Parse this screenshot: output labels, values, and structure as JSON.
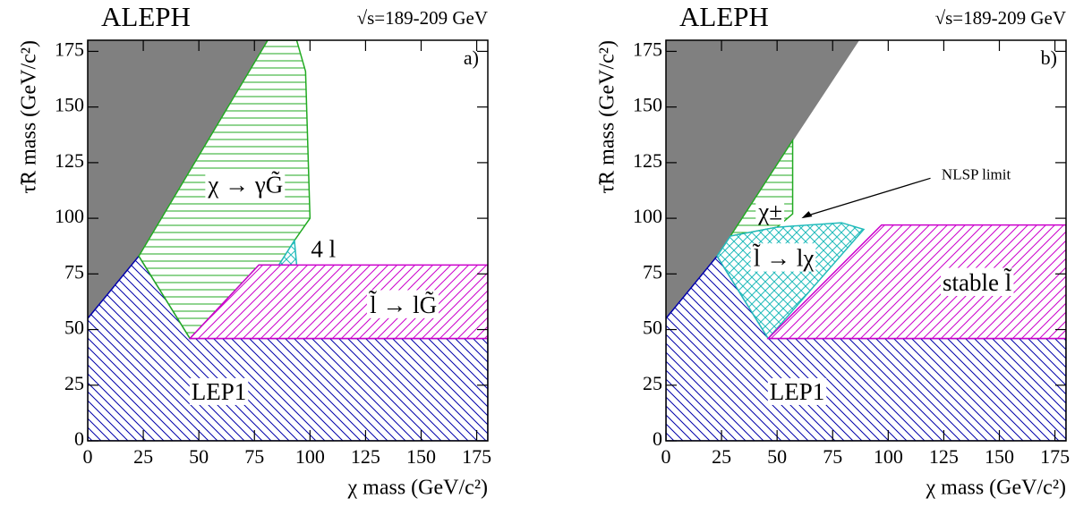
{
  "chart_data": [
    {
      "type": "area",
      "title": "ALEPH",
      "subtitle": "√s=189-209 GeV",
      "panel_label": "a)",
      "x_label": "χ mass (GeV/c²)",
      "y_label": "τ̃R mass (GeV/c²)",
      "xlim": [
        0,
        180
      ],
      "ylim": [
        0,
        180
      ],
      "xticks": [
        0,
        25,
        50,
        75,
        100,
        125,
        150,
        175
      ],
      "yticks": [
        0,
        25,
        50,
        75,
        100,
        125,
        150,
        175
      ],
      "series": [
        {
          "color": "#808080",
          "hatch": "solid",
          "x": [
            0,
            23,
            83,
            0
          ],
          "values": [
            55,
            83,
            180,
            180
          ]
        },
        {
          "name": "LEP1",
          "color": "#0000aa",
          "hatch": "backslash",
          "x": [
            0,
            180,
            180,
            46,
            23,
            0
          ],
          "values": [
            0,
            0,
            46,
            46,
            83,
            55
          ]
        },
        {
          "name": "χ → γG̃",
          "color": "#22aa22",
          "hatch": "horizontal",
          "x": [
            23,
            81,
            94,
            98,
            100,
            93,
            86,
            77,
            46
          ],
          "values": [
            83,
            180,
            180,
            166,
            100,
            90,
            79,
            79,
            46
          ]
        },
        {
          "name": "4 l",
          "color": "#22bbbb",
          "hatch": "cross",
          "x": [
            86,
            93,
            94
          ],
          "values": [
            79,
            90,
            79
          ]
        },
        {
          "name": "l̃ → lG̃",
          "color": "#cc00cc",
          "hatch": "slash",
          "x": [
            46,
            77,
            180,
            180
          ],
          "values": [
            46,
            79,
            79,
            46
          ]
        }
      ]
    },
    {
      "type": "area",
      "title": "ALEPH",
      "subtitle": "√s=189-209 GeV",
      "panel_label": "b)",
      "x_label": "χ mass (GeV/c²)",
      "y_label": "τ̃R mass (GeV/c²)",
      "xlim": [
        0,
        180
      ],
      "ylim": [
        0,
        180
      ],
      "xticks": [
        0,
        25,
        50,
        75,
        100,
        125,
        150,
        175
      ],
      "yticks": [
        0,
        25,
        50,
        75,
        100,
        125,
        150,
        175
      ],
      "annotation": "NLSP limit",
      "series": [
        {
          "color": "#808080",
          "hatch": "solid",
          "x": [
            0,
            23,
            87,
            0
          ],
          "values": [
            55,
            83,
            180,
            180
          ]
        },
        {
          "name": "LEP1",
          "color": "#0000aa",
          "hatch": "backslash",
          "x": [
            0,
            180,
            180,
            46,
            23,
            0
          ],
          "values": [
            0,
            0,
            46,
            46,
            83,
            55
          ]
        },
        {
          "name": "χ±",
          "color": "#22aa22",
          "hatch": "horizontal",
          "x": [
            29,
            57,
            57,
            50
          ],
          "values": [
            92,
            135,
            102,
            96
          ]
        },
        {
          "name": "l̃ → lχ",
          "color": "#22bbbb",
          "hatch": "cross",
          "x": [
            23,
            29,
            50,
            79,
            89,
            46
          ],
          "values": [
            83,
            92,
            96,
            98,
            95,
            46
          ]
        },
        {
          "name": "stable l̃",
          "color": "#cc00cc",
          "hatch": "slash",
          "x": [
            46,
            97,
            180,
            180
          ],
          "values": [
            46,
            97,
            97,
            46
          ]
        }
      ]
    }
  ]
}
